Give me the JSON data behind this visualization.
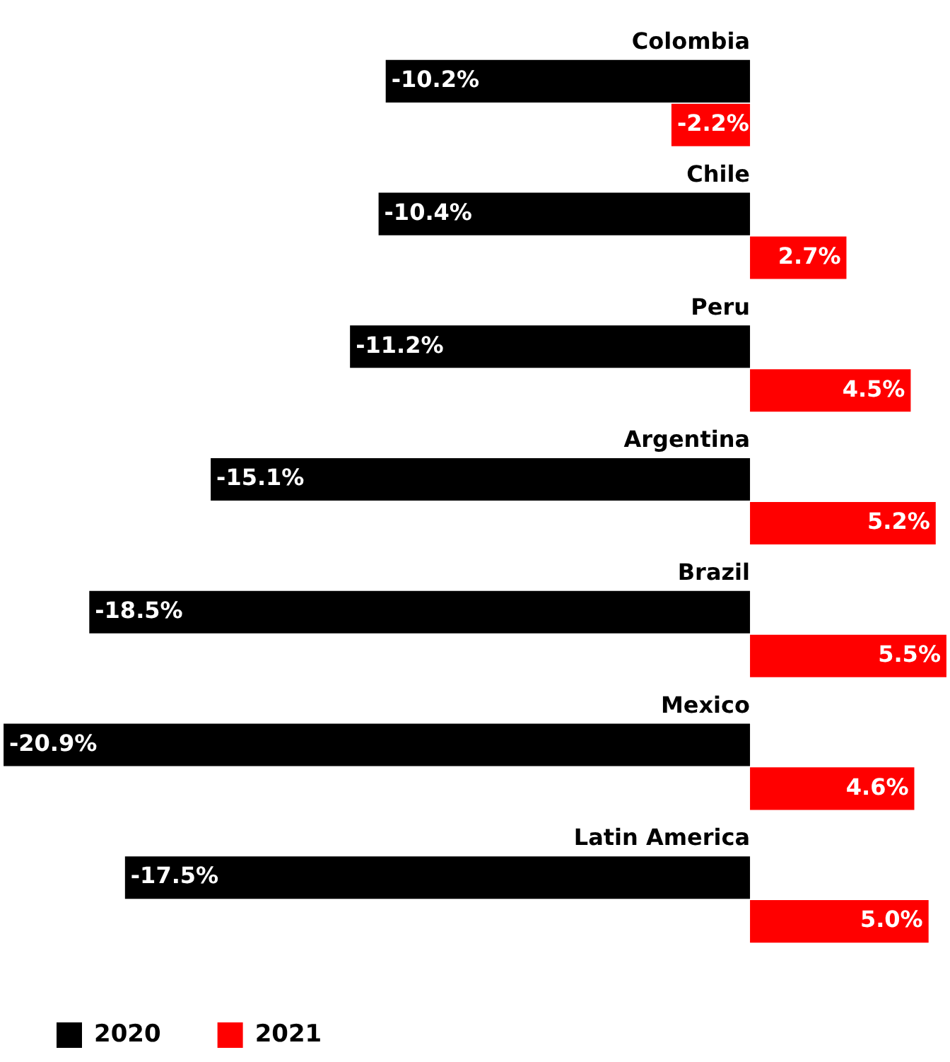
{
  "chart_data": {
    "type": "bar",
    "orientation": "horizontal",
    "categories": [
      "Colombia",
      "Chile",
      "Peru",
      "Argentina",
      "Brazil",
      "Mexico",
      "Latin America"
    ],
    "series": [
      {
        "name": "2020",
        "color": "#000000",
        "values": [
          -10.2,
          -10.4,
          -11.2,
          -15.1,
          -18.5,
          -20.9,
          -17.5
        ],
        "value_labels": [
          "-10.2%",
          "-10.4%",
          "-11.2%",
          "-15.1%",
          "-18.5%",
          "-20.9%",
          "-17.5%"
        ]
      },
      {
        "name": "2021",
        "color": "#ff0000",
        "values": [
          -2.2,
          2.7,
          4.5,
          5.2,
          5.5,
          4.6,
          5.0
        ],
        "value_labels": [
          "-2.2%",
          "2.7%",
          "4.5%",
          "5.2%",
          "5.5%",
          "4.6%",
          "5.0%"
        ]
      }
    ],
    "xlim": [
      -21,
      5.6
    ],
    "tick_labels": "y",
    "legend": "bottom left"
  }
}
